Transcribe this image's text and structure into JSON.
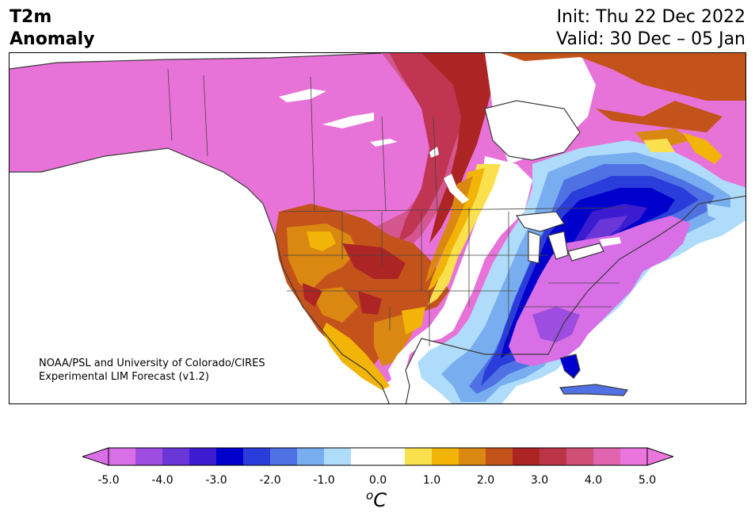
{
  "header": {
    "title_line1": "T2m",
    "title_line2": "Anomaly",
    "init": "Init: Thu 22 Dec 2022",
    "valid": "Valid: 30 Dec – 05 Jan"
  },
  "credit": {
    "line1": "NOAA/PSL and University of Colorado/CIRES",
    "line2": "Experimental LIM Forecast (v1.2)"
  },
  "colorbar": {
    "colors": [
      "#d86fe6",
      "#9d4ddf",
      "#6b36d8",
      "#3b1cd0",
      "#0000cd",
      "#2a3ddb",
      "#4f71e3",
      "#78aef0",
      "#b0dcfb",
      "#ffffff",
      "#ffffff",
      "#fbe04e",
      "#f1b407",
      "#db8812",
      "#c4531b",
      "#ad2424",
      "#bc3448",
      "#cf4f79",
      "#e064ae",
      "#ea75dc"
    ],
    "ticks": [
      "-5.0",
      "-4.0",
      "-3.0",
      "-2.0",
      "-1.0",
      "0.0",
      "1.0",
      "2.0",
      "3.0",
      "4.0",
      "5.0"
    ],
    "unit_base": "C",
    "unit_sup": "o"
  }
}
